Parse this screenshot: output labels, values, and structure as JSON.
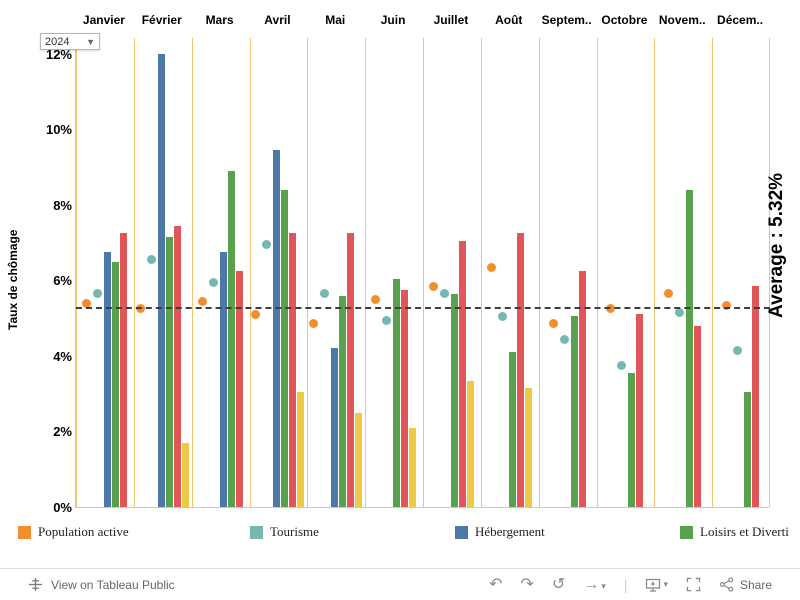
{
  "filters": {
    "year": {
      "value": "2024"
    }
  },
  "footer": {
    "view_text": "View on Tableau Public",
    "share_label": "Share"
  },
  "chart_data": {
    "type": "bar",
    "title": "",
    "ylabel": "Taux de chômage",
    "ylim": [
      0,
      12.45
    ],
    "yticks": [
      0,
      2,
      4,
      6,
      8,
      10,
      12
    ],
    "grid": "vertical-month-dividers",
    "legend_position": "bottom",
    "average_line": {
      "value": 5.32,
      "label": "Average : 5.32%"
    },
    "categories": [
      "Janvier",
      "Février",
      "Mars",
      "Avril",
      "Mai",
      "Juin",
      "Juillet",
      "Août",
      "Septem..",
      "Octobre",
      "Novem..",
      "Décem.."
    ],
    "series": [
      {
        "name": "Population active",
        "mark": "dot",
        "color": "#f28e2b",
        "values": [
          5.4,
          5.25,
          5.45,
          5.1,
          4.85,
          5.5,
          5.85,
          6.35,
          4.85,
          5.25,
          5.65,
          5.35
        ]
      },
      {
        "name": "Tourisme",
        "mark": "dot",
        "color": "#76b7b2",
        "values": [
          5.65,
          6.55,
          5.95,
          6.95,
          5.65,
          4.95,
          5.65,
          5.05,
          4.45,
          3.75,
          5.15,
          4.15
        ]
      },
      {
        "name": "Hébergement",
        "mark": "bar",
        "color": "#4e79a7",
        "values": [
          6.75,
          12.0,
          6.75,
          9.45,
          4.2,
          null,
          null,
          null,
          null,
          null,
          null,
          null
        ]
      },
      {
        "name": "Loisirs et Diverti",
        "mark": "bar",
        "color": "#59a14f",
        "values": [
          6.5,
          7.15,
          8.9,
          8.4,
          5.6,
          6.05,
          5.65,
          4.1,
          5.05,
          3.55,
          8.4,
          3.05
        ]
      },
      {
        "name": null,
        "mark": "bar",
        "color": "#e15759",
        "values": [
          7.25,
          7.45,
          6.25,
          7.25,
          7.25,
          5.75,
          7.05,
          7.25,
          6.25,
          5.1,
          4.8,
          5.85
        ]
      },
      {
        "name": null,
        "mark": "bar",
        "color": "#edc948",
        "values": [
          null,
          1.7,
          null,
          3.05,
          2.5,
          2.1,
          3.35,
          3.15,
          null,
          null,
          null,
          null
        ]
      }
    ],
    "legend": [
      {
        "label": "Population active",
        "color": "#f28e2b"
      },
      {
        "label": "Tourisme",
        "color": "#76b7b2"
      },
      {
        "label": "Hébergement",
        "color": "#4e79a7"
      },
      {
        "label": "Loisirs et Diverti",
        "color": "#59a14f"
      }
    ]
  }
}
